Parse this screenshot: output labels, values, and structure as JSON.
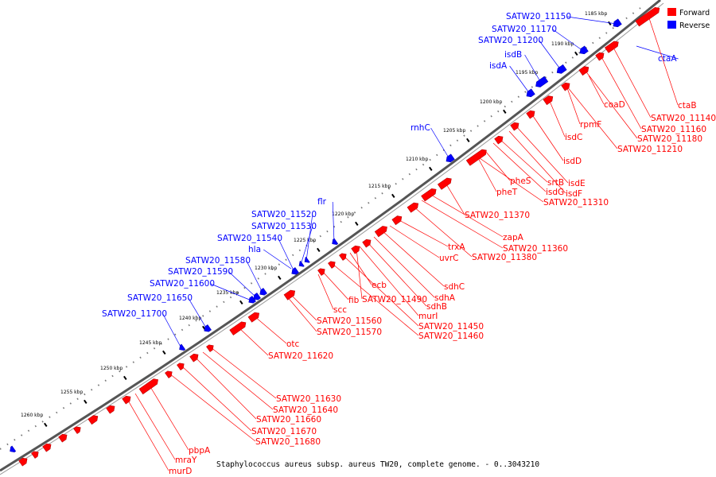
{
  "caption": "Staphylococcus aureus subsp. aureus TW20, complete genome. - 0..3043210",
  "legend": [
    {
      "label": "Forward",
      "color": "#ff0000"
    },
    {
      "label": "Reverse",
      "color": "#0000ff"
    }
  ],
  "colors": {
    "forward": "#ff0000",
    "reverse": "#0000ff",
    "backbone": "#555555"
  },
  "ticks": [
    "1185 kbp",
    "1190 kbp",
    "1195 kbp",
    "1200 kbp",
    "1205 kbp",
    "1210 kbp",
    "1215 kbp",
    "1220 kbp",
    "1225 kbp",
    "1230 kbp",
    "1235 kbp",
    "1240 kbp",
    "1245 kbp",
    "1250 kbp",
    "1255 kbp",
    "1260 kbp"
  ],
  "reverse_labels": [
    "SATW20_11150",
    "SATW20_11170",
    "SATW20_11200",
    "isdB",
    "isdA",
    "rnhC",
    "flr",
    "SATW20_11520",
    "SATW20_11530",
    "SATW20_11540",
    "hla",
    "SATW20_11580",
    "SATW20_11590",
    "SATW20_11600",
    "SATW20_11650",
    "SATW20_11700",
    "ctaA"
  ],
  "forward_labels": [
    "ctaB",
    "SATW20_11140",
    "SATW20_11160",
    "SATW20_11180",
    "SATW20_11210",
    "coaD",
    "rpmF",
    "isdC",
    "isdD",
    "isdE",
    "isdF",
    "srtB",
    "isdG",
    "SATW20_11310",
    "pheS",
    "pheT",
    "SATW20_11370",
    "zapA",
    "SATW20_11360",
    "SATW20_11380",
    "trxA",
    "uvrC",
    "sdhC",
    "sdhA",
    "sdhB",
    "murI",
    "SATW20_11490",
    "SATW20_11450",
    "SATW20_11460",
    "ecb",
    "fib",
    "scc",
    "SATW20_11560",
    "SATW20_11570",
    "otc",
    "SATW20_11620",
    "SATW20_11630",
    "SATW20_11640",
    "SATW20_11660",
    "SATW20_11670",
    "SATW20_11680",
    "pbpA",
    "mraY",
    "murD"
  ]
}
